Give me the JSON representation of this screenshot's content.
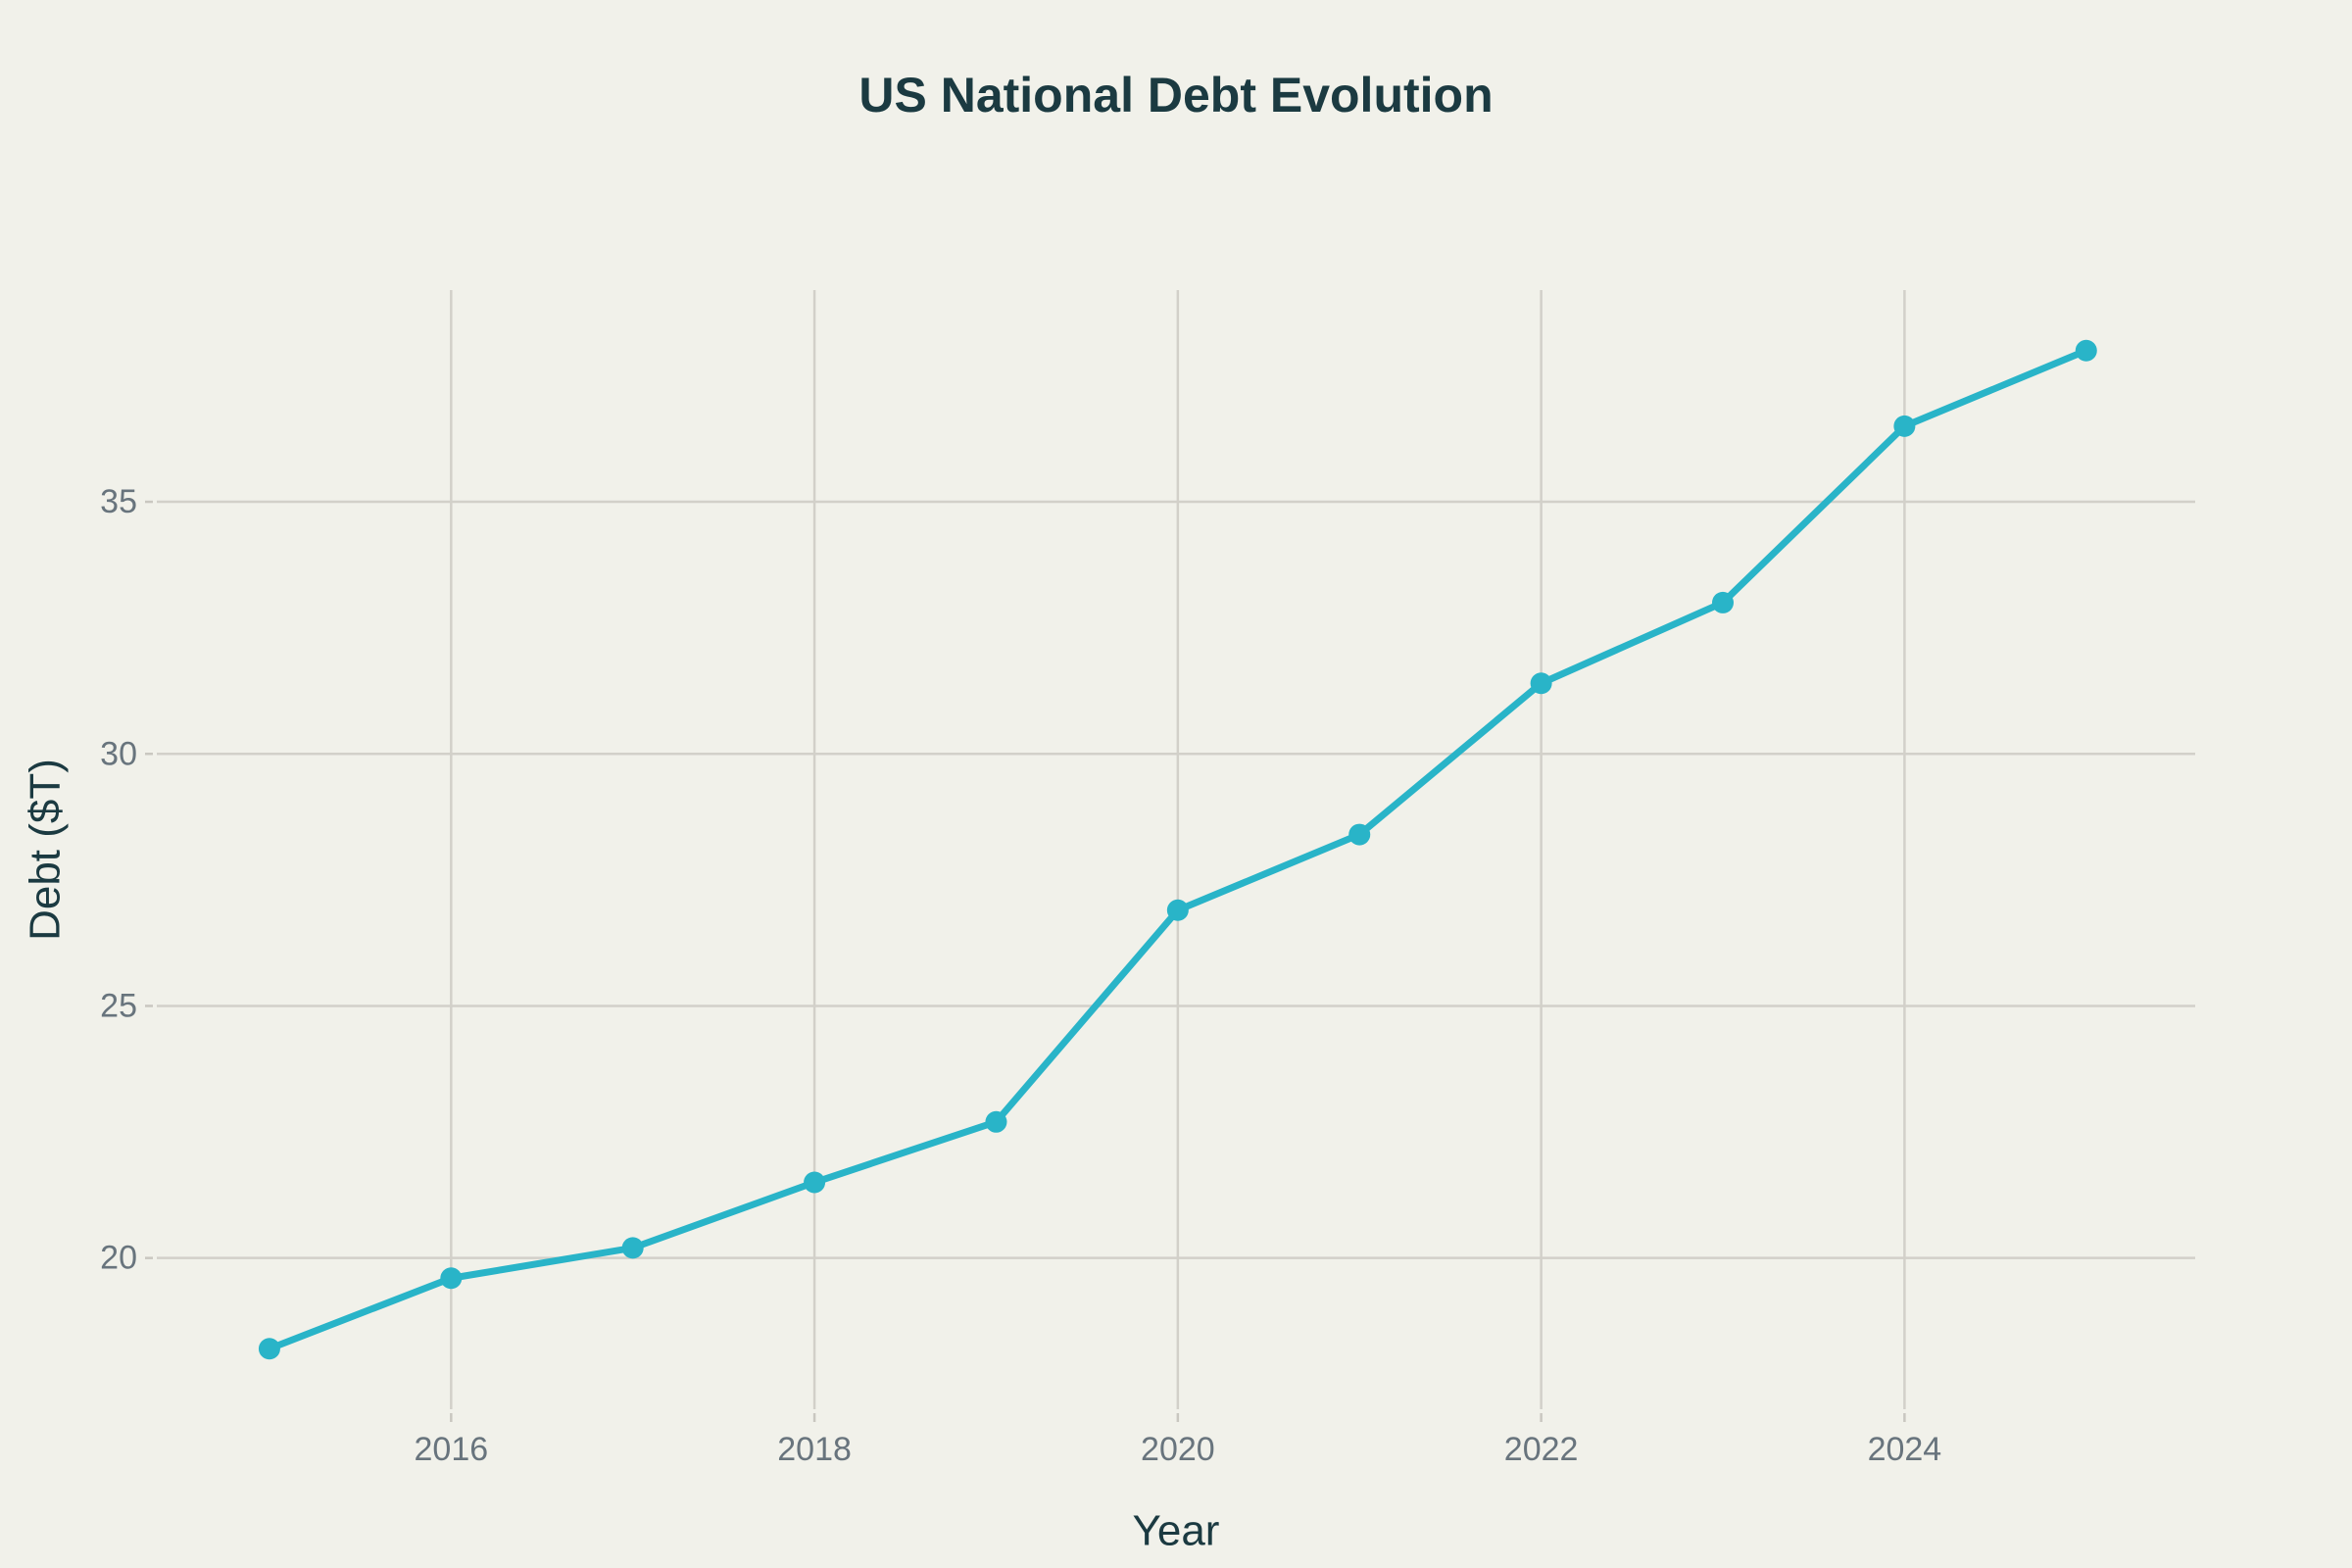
{
  "chart_data": {
    "type": "line",
    "title": "US National Debt Evolution",
    "xlabel": "Year",
    "ylabel": "Debt ($T)",
    "x": [
      2015,
      2016,
      2017,
      2018,
      2019,
      2020,
      2021,
      2022,
      2023,
      2024,
      2025
    ],
    "y": [
      18.2,
      19.6,
      20.2,
      21.5,
      22.7,
      26.9,
      28.4,
      31.4,
      33.0,
      36.5,
      38.0
    ],
    "x_ticks": [
      2016,
      2018,
      2020,
      2022,
      2024
    ],
    "x_tick_labels": [
      "2016",
      "2018",
      "2020",
      "2022",
      "2024"
    ],
    "y_ticks": [
      20,
      25,
      30,
      35
    ],
    "y_tick_labels": [
      "20",
      "25",
      "30",
      "35"
    ],
    "xlim": [
      2014.38,
      2025.6
    ],
    "ylim": [
      17.0,
      39.2
    ],
    "grid": true,
    "legend": false,
    "marker": "circle",
    "colors": {
      "line": "#29b4c8",
      "marker": "#29b4c8",
      "background": "#f1f1ea",
      "grid": "#d2d0c9",
      "tick": "#c9c7c0",
      "tick_label": "#68747d",
      "title": "#1b3a41",
      "axis_title": "#1b3a41"
    }
  }
}
